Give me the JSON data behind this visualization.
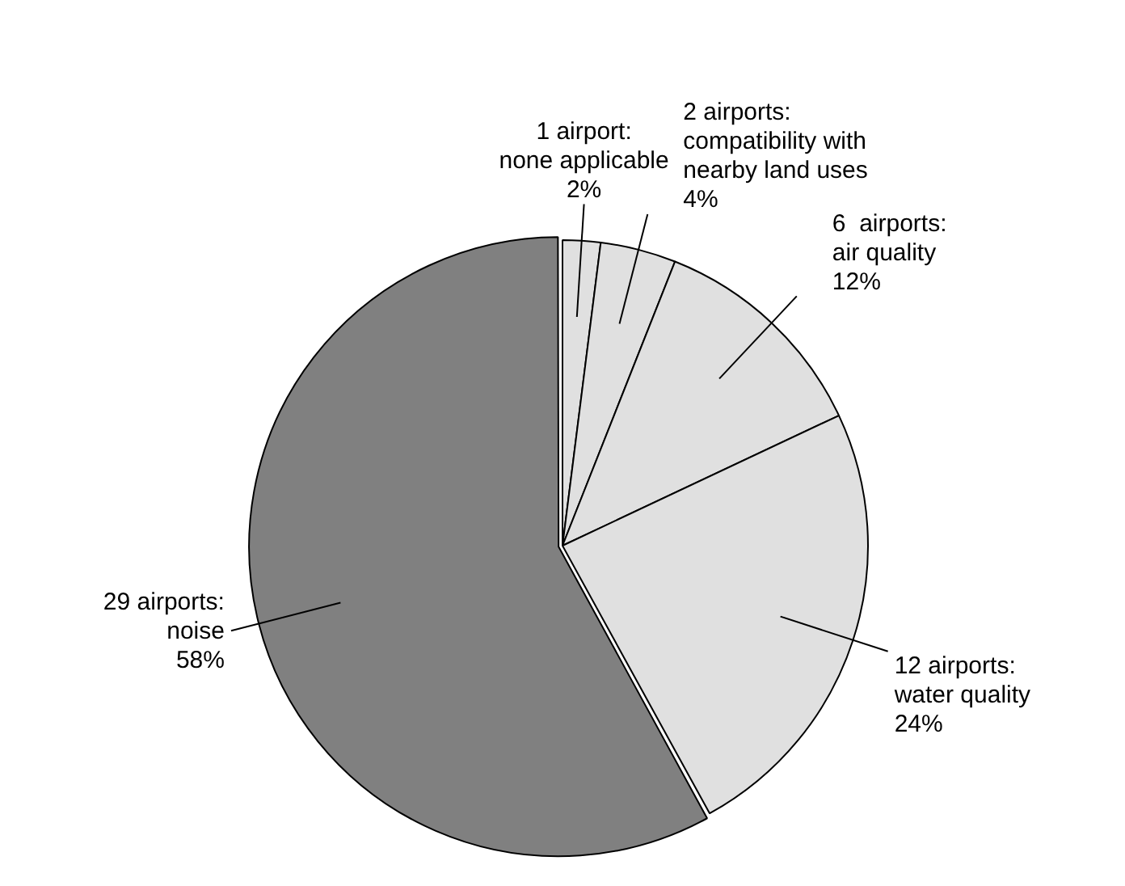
{
  "chart_data": {
    "type": "pie",
    "categories": [
      "1 airport:\nnone applicable",
      "2 airports:\ncompatibility with\nnearby land uses",
      "6  airports:\nair quality",
      "12 airports:\nwater quality",
      "29 airports:\nnoise"
    ],
    "values": [
      2,
      4,
      12,
      24,
      58
    ],
    "colors": [
      "#e0e0e0",
      "#e0e0e0",
      "#e0e0e0",
      "#e0e0e0",
      "#808080"
    ],
    "value_labels": [
      "2%",
      "4%",
      "12%",
      "24%",
      "58%"
    ],
    "legend": false
  }
}
